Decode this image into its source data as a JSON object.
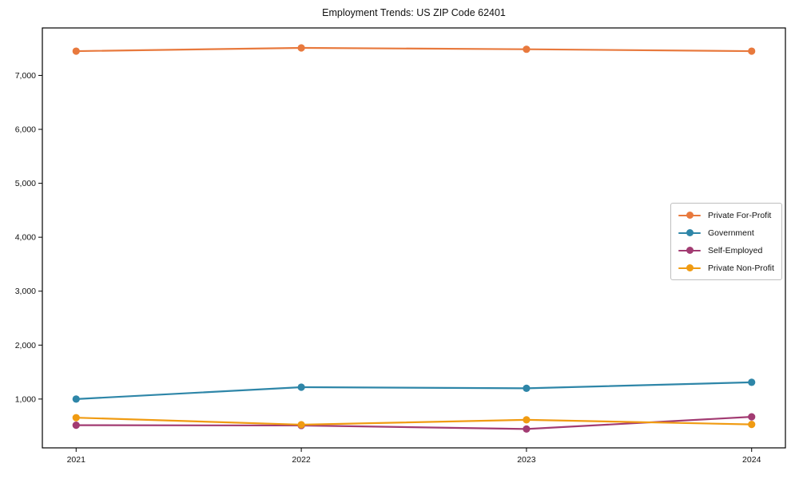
{
  "chart_data": {
    "type": "line",
    "title": "Employment Trends: US ZIP Code 62401",
    "xlabel": "",
    "ylabel": "",
    "x": [
      2021,
      2022,
      2023,
      2024
    ],
    "xticklabels": [
      "2021",
      "2022",
      "2023",
      "2024"
    ],
    "yticks": [
      1000,
      2000,
      3000,
      4000,
      5000,
      6000,
      7000
    ],
    "yticklabels": [
      "1,000",
      "2,000",
      "3,000",
      "4,000",
      "5,000",
      "6,000",
      "7,000"
    ],
    "xlim": [
      2020.85,
      2024.15
    ],
    "ylim": [
      95,
      7880
    ],
    "grid": false,
    "legend_position": "center-right",
    "axes_box": true,
    "axis_color": "#000000",
    "series": [
      {
        "name": "Private For-Profit",
        "color": "#e8793d",
        "values": [
          7450,
          7510,
          7485,
          7450
        ]
      },
      {
        "name": "Government",
        "color": "#2e86a8",
        "values": [
          1000,
          1220,
          1200,
          1310
        ]
      },
      {
        "name": "Self-Employed",
        "color": "#a23b72",
        "values": [
          515,
          510,
          445,
          670
        ]
      },
      {
        "name": "Private Non-Profit",
        "color": "#f09b12",
        "values": [
          655,
          525,
          615,
          530
        ]
      }
    ]
  }
}
